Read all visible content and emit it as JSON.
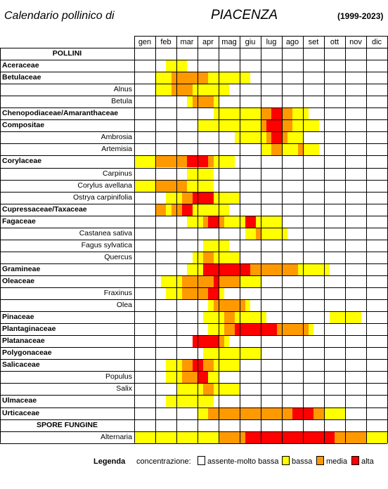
{
  "header": {
    "subtitle": "Calendario pollinico di",
    "city": "PIACENZA",
    "years": "(1999-2023)"
  },
  "months": [
    "gen",
    "feb",
    "mar",
    "apr",
    "mag",
    "giu",
    "lug",
    "ago",
    "set",
    "ott",
    "nov",
    "dic"
  ],
  "colors": {
    "assente": "#ffffff",
    "bassa": "#ffff00",
    "media": "#ff9900",
    "alta": "#ff0000",
    "grid": "#000000"
  },
  "legend": {
    "title": "Legenda",
    "concentration_label": "concentrazione:",
    "levels": [
      {
        "key": "assente",
        "label": "assente-molto bassa"
      },
      {
        "key": "bassa",
        "label": "bassa"
      },
      {
        "key": "media",
        "label": "media"
      },
      {
        "key": "alta",
        "label": "alta"
      }
    ]
  },
  "rows": [
    {
      "label": "POLLINI",
      "kind": "section",
      "cells": ""
    },
    {
      "label": "Aceraceae",
      "kind": "group",
      "cells": "000000YYYY0000000000000000000000000000000000000000"
    },
    {
      "label": "Betulaceae",
      "kind": "group",
      "cells": "0000YYYMMMMMMMMYYYYYYYY00000000000000000000000000000"
    },
    {
      "label": "Alnus",
      "kind": "species",
      "cells": "0000YYYMMMMYYYYYYYY000000000000000000000000000000000"
    },
    {
      "label": "Betula",
      "kind": "species",
      "cells": "0000000000YYMMMMY000000000000000000000000000000000000"
    },
    {
      "label": "Chenopodiaceae/Amaranthaceae",
      "kind": "group",
      "cells": "0000000000000000YYYYYYYYYYMMAAMMYYY00000000000000000"
    },
    {
      "label": "Compositae",
      "kind": "group",
      "cells": "000000000000YYYYYYYYYYYYYYMAAAMMYYYYY000000000000000"
    },
    {
      "label": "Ambrosia",
      "kind": "species",
      "cells": "00000000000000000000YYYYYYMAAMYYY000000000000000000"
    },
    {
      "label": "Artemisia",
      "kind": "species",
      "cells": "0000000000000000000000000YYMMYYYMYYYY00000000000000"
    },
    {
      "label": "Corylaceae",
      "kind": "group",
      "cells": "YYYYMMMMMMAAAAAMYYYY00000000000000000000000000000000"
    },
    {
      "label": "Carpinus",
      "kind": "species",
      "cells": "0000000000YYYYYY000000000000000000000000000000000000"
    },
    {
      "label": "Corylus avellana",
      "kind": "species",
      "cells": "YYYYMMMMMMYYYYYY000000000000000000000000000000000000"
    },
    {
      "label": "Ostrya carpinifolia",
      "kind": "species",
      "cells": "000000YYYMMAAAAAYYYYY0000000000000000000000000000000"
    },
    {
      "label": "Cupressaceae/Taxaceae",
      "kind": "group",
      "cells": "0000MMYMMAAYYYYYYYY000000000000000000000000000000000"
    },
    {
      "label": "Fagaceae",
      "kind": "group",
      "cells": "0000000000YYYMAAMMYYYYAAYYYYY0000000000000000000000"
    },
    {
      "label": "Castanea sativa",
      "kind": "species",
      "cells": "000000000000000000000YYMAYYYYY00000000000000000000"
    },
    {
      "label": "Fagus sylvatica",
      "kind": "species",
      "cells": "0000000000000YYYYY00000000000000000000000000000000"
    },
    {
      "label": "Quercus",
      "kind": "species",
      "cells": "00000000000YYMMYYYYY000000000000000000000000000000"
    },
    {
      "label": "Gramineae",
      "kind": "group",
      "cells": "0000000000YYYAAAAAAAAAAMMMMMMMMMYYYYYYY000000000000"
    },
    {
      "label": "Oleaceae",
      "kind": "group",
      "cells": "00000YYYYMMMMMMAMMMMYYYYY0000000000000000000000000"
    },
    {
      "label": "Fraxinus",
      "kind": "species",
      "cells": "000000YYYMMMMMAAY000000000000000000000000000000000"
    },
    {
      "label": "Olea",
      "kind": "species",
      "cells": "00000000000000YMMMMMMMY0000000000000000000000000000"
    },
    {
      "label": "Pinaceae",
      "kind": "group",
      "cells": "00000000000000YYYYMMYYYYYYY0000000000000YYYYYY000000"
    },
    {
      "label": "Plantaginaceae",
      "kind": "group",
      "cells": "00000000000000YYYYMMAAAAAAAAMMMMMMMY000000000000000"
    },
    {
      "label": "Platanaceae",
      "kind": "group",
      "cells": "00000000000AAAAAAMY000000000000000000000000000000000"
    },
    {
      "label": "Polygonaceae",
      "kind": "group",
      "cells": "0000000000000YYYYYYYYYYYY00000000000000000000000000"
    },
    {
      "label": "Salicaceae",
      "kind": "group",
      "cells": "000000YYYMMAAMMYYYYYY000000000000000000000000000000"
    },
    {
      "label": "Populus",
      "kind": "species",
      "cells": "000000YYYMMMAAYY00000000000000000000000000000000000"
    },
    {
      "label": "Salix",
      "kind": "species",
      "cells": "00000000YYYYYMMYYYYY000000000000000000000000000000"
    },
    {
      "label": "Ulmaceae",
      "kind": "group",
      "cells": "000000YYYYYYYYYY000000000000000000000000000000000000"
    },
    {
      "label": "Urticaceae",
      "kind": "group",
      "cells": "0000000000000YYMMMMMMMMMMMMMMMMMAAAAMMYYYYY000000000"
    },
    {
      "label": "SPORE FUNGINE",
      "kind": "section",
      "cells": ""
    },
    {
      "label": "Alternaria",
      "kind": "species",
      "cells": "YYYYYYYYYYYYYYYYMMMMMMAAAAAAAAAAAAAAAAAAMMMMMMYYYYY"
    }
  ]
}
